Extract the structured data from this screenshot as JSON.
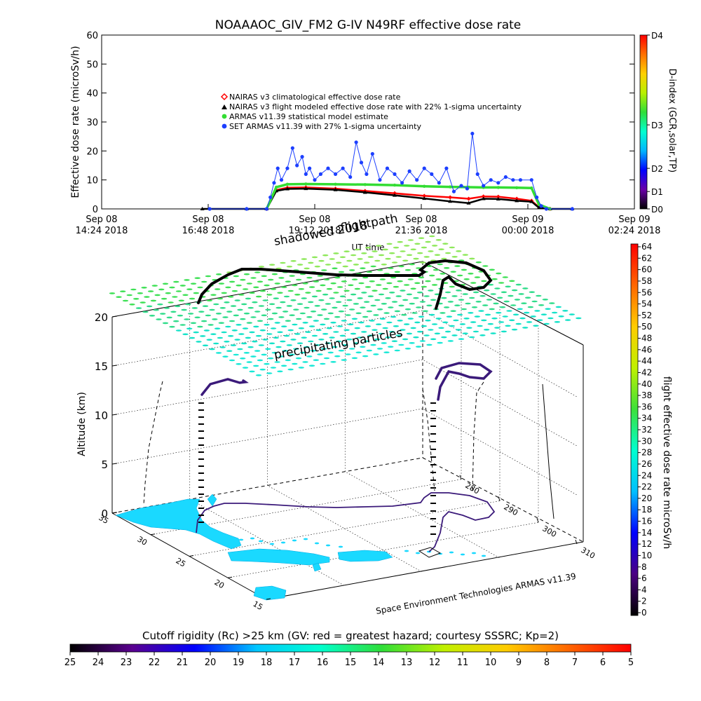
{
  "chart_data": [
    {
      "type": "line",
      "title": "NOAAAOC_GIV_FM2  G-IV    N49RF  effective dose rate",
      "ylabel": "Effective dose rate (microSv/h)",
      "xlabel": "UT time",
      "ylim": [
        0,
        60
      ],
      "yticks": [
        0,
        10,
        20,
        30,
        40,
        50,
        60
      ],
      "xlim": [
        "2018-09-08T14:24",
        "2018-09-09T02:24"
      ],
      "xticks": [
        {
          "x": "2018-09-08T14:24",
          "line1": "Sep 08",
          "line2": "14:24 2018"
        },
        {
          "x": "2018-09-08T16:48",
          "line1": "Sep 08",
          "line2": "16:48 2018"
        },
        {
          "x": "2018-09-08T19:12",
          "line1": "Sep 08",
          "line2": "19:12 2018"
        },
        {
          "x": "2018-09-08T21:36",
          "line1": "Sep 08",
          "line2": "21:36 2018"
        },
        {
          "x": "2018-09-09T00:00",
          "line1": "Sep 09",
          "line2": "00:00 2018"
        },
        {
          "x": "2018-09-09T02:24",
          "line1": "Sep 09",
          "line2": "02:24 2018"
        }
      ],
      "legend_position": "upper-left",
      "series": [
        {
          "name": "NAIRAS v3 climatological effective dose rate",
          "color": "#ff0000",
          "marker": "diamond",
          "x": [
            "2018-09-08T18:07",
            "2018-09-08T18:20",
            "2018-09-08T18:35",
            "2018-09-08T19:00",
            "2018-09-08T19:40",
            "2018-09-08T20:20",
            "2018-09-08T21:00",
            "2018-09-08T21:40",
            "2018-09-08T22:15",
            "2018-09-08T22:40",
            "2018-09-08T23:00",
            "2018-09-08T23:20",
            "2018-09-08T23:45",
            "2018-09-09T00:05",
            "2018-09-09T00:15",
            "2018-09-09T00:30"
          ],
          "y": [
            0,
            6.5,
            7.3,
            7.4,
            7.0,
            6.2,
            5.4,
            4.5,
            4.0,
            3.5,
            4.3,
            4.2,
            3.5,
            2.8,
            0.6,
            0
          ]
        },
        {
          "name": "NAIRAS v3 flight modeled effective dose rate with 22% 1-sigma uncertainty",
          "color": "#000000",
          "marker": "triangle",
          "x": [
            "2018-09-08T16:40",
            "2018-09-08T17:40",
            "2018-09-08T18:07",
            "2018-09-08T18:20",
            "2018-09-08T18:35",
            "2018-09-08T19:00",
            "2018-09-08T19:40",
            "2018-09-08T20:20",
            "2018-09-08T21:00",
            "2018-09-08T21:40",
            "2018-09-08T22:15",
            "2018-09-08T22:40",
            "2018-09-08T23:00",
            "2018-09-08T23:20",
            "2018-09-08T23:45",
            "2018-09-09T00:05",
            "2018-09-09T00:15",
            "2018-09-09T00:30",
            "2018-09-09T01:00"
          ],
          "y": [
            0,
            0,
            0,
            6.2,
            6.9,
            7.0,
            6.6,
            5.7,
            4.7,
            3.6,
            2.6,
            2.0,
            3.5,
            3.4,
            2.8,
            2.5,
            0.4,
            0,
            0
          ]
        },
        {
          "name": "ARMAS v11.39 statistical model estimate",
          "color": "#33dd33",
          "marker": "asterisk",
          "x": [
            "2018-09-08T18:07",
            "2018-09-08T18:20",
            "2018-09-08T18:35",
            "2018-09-08T19:00",
            "2018-09-08T19:40",
            "2018-09-08T20:20",
            "2018-09-08T21:00",
            "2018-09-08T21:40",
            "2018-09-08T22:15",
            "2018-09-08T22:40",
            "2018-09-08T23:00",
            "2018-09-08T23:20",
            "2018-09-08T23:45",
            "2018-09-09T00:05",
            "2018-09-09T00:15",
            "2018-09-09T00:30"
          ],
          "y": [
            0,
            7.5,
            8.5,
            8.6,
            8.5,
            8.4,
            8.2,
            7.8,
            7.6,
            7.5,
            7.4,
            7.4,
            7.3,
            7.2,
            1.5,
            0
          ]
        },
        {
          "name": "SET ARMAS v11.39 with 27% 1-sigma uncertainty",
          "color": "#1c3fff",
          "marker": "dot",
          "x": [
            "2018-09-08T16:50",
            "2018-09-08T17:40",
            "2018-09-08T18:07",
            "2018-09-08T18:12",
            "2018-09-08T18:17",
            "2018-09-08T18:22",
            "2018-09-08T18:27",
            "2018-09-08T18:35",
            "2018-09-08T18:42",
            "2018-09-08T18:48",
            "2018-09-08T18:55",
            "2018-09-08T19:00",
            "2018-09-08T19:05",
            "2018-09-08T19:12",
            "2018-09-08T19:20",
            "2018-09-08T19:30",
            "2018-09-08T19:40",
            "2018-09-08T19:50",
            "2018-09-08T20:00",
            "2018-09-08T20:08",
            "2018-09-08T20:15",
            "2018-09-08T20:22",
            "2018-09-08T20:30",
            "2018-09-08T20:40",
            "2018-09-08T20:50",
            "2018-09-08T21:00",
            "2018-09-08T21:10",
            "2018-09-08T21:20",
            "2018-09-08T21:30",
            "2018-09-08T21:40",
            "2018-09-08T21:50",
            "2018-09-08T22:00",
            "2018-09-08T22:10",
            "2018-09-08T22:20",
            "2018-09-08T22:30",
            "2018-09-08T22:38",
            "2018-09-08T22:45",
            "2018-09-08T22:52",
            "2018-09-08T23:00",
            "2018-09-08T23:10",
            "2018-09-08T23:20",
            "2018-09-08T23:30",
            "2018-09-08T23:40",
            "2018-09-08T23:50",
            "2018-09-09T00:05",
            "2018-09-09T00:12",
            "2018-09-09T00:18",
            "2018-09-09T00:25",
            "2018-09-09T01:00"
          ],
          "y": [
            0,
            0,
            0,
            4,
            9,
            14,
            10,
            14,
            21,
            15,
            18,
            12,
            14,
            10,
            12,
            14,
            12,
            14,
            11,
            23,
            16,
            12,
            19,
            10,
            14,
            12,
            9,
            13,
            10,
            14,
            12,
            9,
            14,
            6,
            8,
            7,
            26,
            12,
            8,
            10,
            9,
            11,
            10,
            10,
            10,
            4,
            1,
            0,
            0
          ]
        }
      ],
      "d_index_colorbar": {
        "label": "D-index (GCR,solar,TP)",
        "ticks": [
          {
            "label": "D4",
            "value": 60
          },
          {
            "label": "D3",
            "value": 29
          },
          {
            "label": "D2",
            "value": 14
          },
          {
            "label": "D1",
            "value": 6
          },
          {
            "label": "D0",
            "value": 0
          }
        ],
        "colors": [
          "#000000",
          "#6a00a8",
          "#0000ff",
          "#00b4ff",
          "#00ffd0",
          "#2fde39",
          "#b8f000",
          "#ffd000",
          "#ff7000",
          "#ff0000"
        ]
      }
    },
    {
      "type": "scatter",
      "subtype": "3d-flight-track",
      "zlabel": "Altitude (km)",
      "zticks": [
        0,
        5,
        10,
        15,
        20
      ],
      "lat_ticks": [
        15,
        20,
        25,
        30,
        35
      ],
      "lon_ticks": [
        280,
        290,
        300,
        310
      ],
      "flightpath_label": "flightpath",
      "shadowed_label": "shadowed 2018",
      "particles_label": "precipitating particles",
      "credit": "Space Environment Technologies ARMAS v11.39",
      "colorbar": {
        "label": "flight effective dose rate microSv/h",
        "ticks": [
          0,
          2,
          4,
          6,
          8,
          10,
          12,
          14,
          16,
          18,
          20,
          22,
          24,
          26,
          28,
          30,
          32,
          34,
          36,
          38,
          40,
          42,
          44,
          46,
          48,
          50,
          52,
          54,
          56,
          58,
          60,
          62,
          64
        ],
        "colors": [
          "#000000",
          "#4b0082",
          "#0000ff",
          "#00bfff",
          "#00ffd0",
          "#3ee03a",
          "#c0f000",
          "#ffcc00",
          "#ff6600",
          "#ff0000"
        ]
      },
      "cutoff_bar": {
        "label": "Cutoff rigidity (Rc) >25 km (GV: red = greatest hazard; courtesy SSSRC; Kp=2)",
        "ticks": [
          25,
          24,
          23,
          22,
          21,
          20,
          19,
          18,
          17,
          16,
          15,
          14,
          13,
          12,
          11,
          10,
          9,
          8,
          7,
          6,
          5
        ],
        "colors": [
          "#000000",
          "#5a0090",
          "#0000ff",
          "#00c8ff",
          "#00ffd0",
          "#2fde39",
          "#c0f000",
          "#ffcc00",
          "#ff6600",
          "#ff0000"
        ]
      }
    }
  ]
}
